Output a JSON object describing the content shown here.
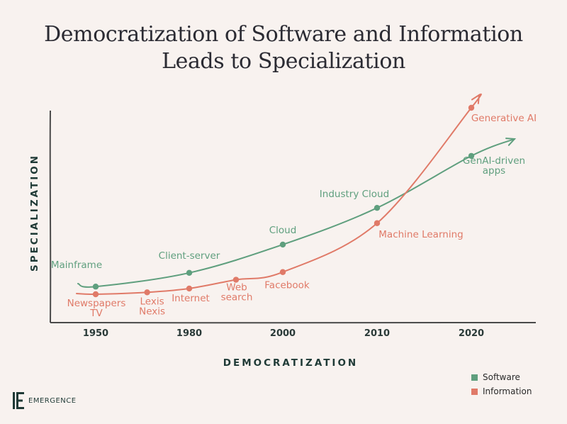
{
  "chart_data": {
    "type": "line",
    "title": [
      "Democratization of Software and Information",
      "Leads to Specialization"
    ],
    "xlabel": "DEMOCRATIZATION",
    "ylabel": "SPECIALIZATION",
    "x_ticks": [
      "1950",
      "1980",
      "2000",
      "2010",
      "2020"
    ],
    "series": [
      {
        "name": "Software",
        "color": "#5f9f7e",
        "points": [
          {
            "x": 0,
            "y": 1.0,
            "label": [
              "Mainframe"
            ]
          },
          {
            "x": 1,
            "y": 2.8,
            "label": [
              "Client-server"
            ]
          },
          {
            "x": 2,
            "y": 6.5,
            "label": [
              "Cloud"
            ]
          },
          {
            "x": 3,
            "y": 11.3,
            "label": [
              "Industry Cloud"
            ]
          },
          {
            "x": 4,
            "y": 18.1,
            "label": [
              "GenAI-driven",
              "apps"
            ]
          }
        ]
      },
      {
        "name": "Information",
        "color": "#e07a68",
        "points": [
          {
            "x": 0,
            "y": 0.0,
            "label": [
              "Newspapers",
              "TV"
            ]
          },
          {
            "x": 0.55,
            "y": 0.25,
            "label": [
              "Lexis",
              "Nexis"
            ]
          },
          {
            "x": 1,
            "y": 0.75,
            "label": [
              "Internet"
            ]
          },
          {
            "x": 1.5,
            "y": 1.9,
            "label": [
              "Web",
              "search"
            ]
          },
          {
            "x": 2,
            "y": 2.9,
            "label": [
              "Facebook"
            ]
          },
          {
            "x": 3,
            "y": 9.3,
            "label": [
              "Machine Learning"
            ]
          },
          {
            "x": 4,
            "y": 24.4,
            "label": [
              "Generative AI"
            ]
          }
        ]
      }
    ]
  },
  "legend": {
    "software": "Software",
    "information": "Information"
  },
  "brand": {
    "name": "EMERGENCE"
  }
}
